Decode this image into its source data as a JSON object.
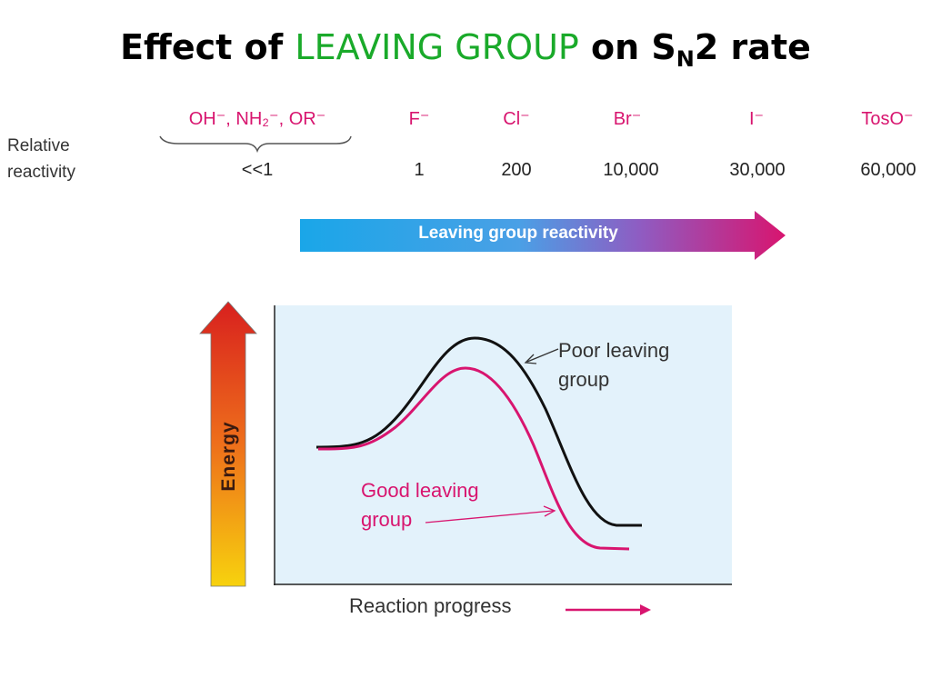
{
  "title": {
    "prefix": "Effect of ",
    "highlight": "LEAVING GROUP",
    "middle": " on S",
    "subscript": "N",
    "suffix": "2 rate"
  },
  "table": {
    "row_label_line1": "Relative",
    "row_label_line2": "reactivity",
    "groups": [
      {
        "label": "OH⁻, NH₂⁻, OR⁻",
        "value": "<<1"
      },
      {
        "label": "F⁻",
        "value": "1"
      },
      {
        "label": "Cl⁻",
        "value": "200"
      },
      {
        "label": "Br⁻",
        "value": "10,000"
      },
      {
        "label": "I⁻",
        "value": "30,000"
      },
      {
        "label": "TosO⁻",
        "value": "60,000"
      }
    ]
  },
  "reactivity_arrow": {
    "label": "Leaving group reactivity",
    "color_start": "#1aa6e8",
    "color_end": "#d8156f"
  },
  "energy_diagram": {
    "y_axis_label": "Energy",
    "x_axis_label": "Reaction progress",
    "poor_label_line1": "Poor leaving",
    "poor_label_line2": "group",
    "good_label_line1": "Good leaving",
    "good_label_line2": "group",
    "panel_color": "#e3f2fb",
    "poor_curve_color": "#111111",
    "good_curve_color": "#d8156f",
    "energy_arrow_colors": [
      "#f7d20e",
      "#ee6f1b",
      "#d8201e"
    ]
  }
}
